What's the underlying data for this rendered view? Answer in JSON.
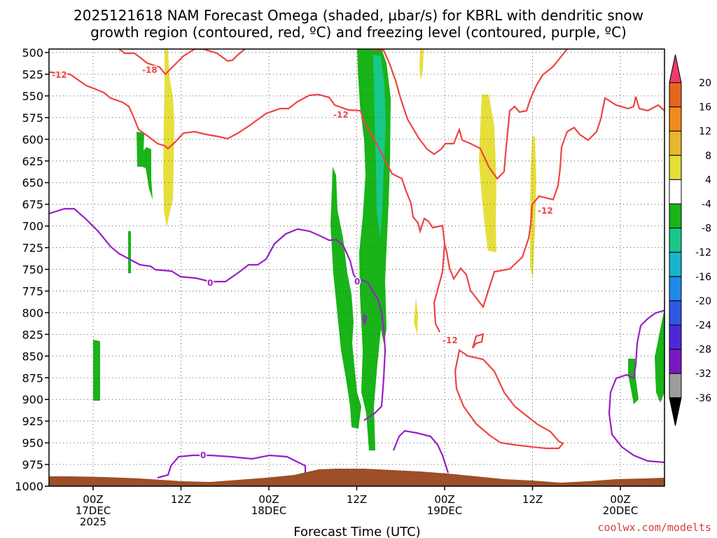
{
  "chart_data": {
    "type": "heatmap",
    "title_line1": "2025121618 NAM Forecast Omega (shaded, µbar/s) for KBRL with dendritic snow",
    "title_line2": "growth region (contoured, red, ºC) and freezing level (contoured, purple, ºC)",
    "xlabel": "Forecast Time (UTC)",
    "ylabel": "",
    "credit": "coolwx.com/modelts",
    "y_axis": {
      "reversed": true,
      "range": [
        1000,
        500
      ],
      "ticks": [
        "500",
        "525",
        "550",
        "575",
        "600",
        "625",
        "650",
        "675",
        "700",
        "725",
        "750",
        "775",
        "800",
        "825",
        "850",
        "875",
        "900",
        "925",
        "950",
        "975",
        "1000"
      ]
    },
    "x_axis": {
      "ticks": [
        {
          "lines": [
            "00Z",
            "17DEC",
            "2025"
          ]
        },
        {
          "lines": [
            "12Z"
          ]
        },
        {
          "lines": [
            "00Z",
            "18DEC"
          ]
        },
        {
          "lines": [
            "12Z"
          ]
        },
        {
          "lines": [
            "00Z",
            "19DEC"
          ]
        },
        {
          "lines": [
            "12Z"
          ]
        },
        {
          "lines": [
            "00Z",
            "20DEC"
          ]
        }
      ]
    },
    "colorbar": {
      "labels": [
        "20",
        "16",
        "12",
        "8",
        "4",
        "-4",
        "-8",
        "-12",
        "-16",
        "-20",
        "-24",
        "-28",
        "-32",
        "-36"
      ],
      "colors": [
        "#ee3a6a",
        "#e4661e",
        "#f48a1e",
        "#e9b72f",
        "#e6df3a",
        "#ffffff",
        "#18b418",
        "#18c88a",
        "#1ab4cc",
        "#1e8ae8",
        "#2d5ae2",
        "#4c28d8",
        "#7a18c4",
        "#9c9c9c",
        "#000000"
      ]
    },
    "contour_labels": {
      "red": [
        "-12",
        "-18",
        "-12",
        "-12",
        "-12"
      ],
      "purple": [
        "0",
        "0",
        "0"
      ]
    },
    "colors": {
      "dgz_contour": "#ee4444",
      "freezing_contour": "#9a1ec8",
      "terrain": "#9c4f28",
      "grid": "#555555"
    }
  }
}
